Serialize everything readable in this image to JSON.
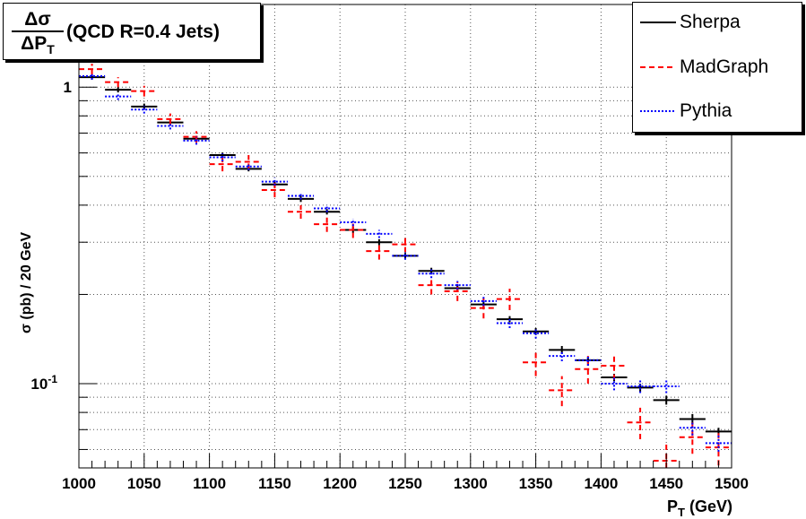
{
  "chart_data": {
    "type": "line",
    "title_fraction": {
      "numerator": "Δσ",
      "denominator": "ΔP",
      "denominator_sub": "T"
    },
    "title": "(QCD R=0.4 Jets)",
    "xlabel": "P",
    "xlabel_sub": "T",
    "xlabel_unit": "(GeV)",
    "ylabel": "σ (pb) / 20 GeV",
    "xlim": [
      1000,
      1500
    ],
    "ylim": [
      0.052,
      1.9
    ],
    "ylog": true,
    "grid": true,
    "legend_position": "top-right",
    "bin_width": 20,
    "x_ticks": [
      "1000",
      "1050",
      "1100",
      "1150",
      "1200",
      "1250",
      "1300",
      "1350",
      "1400",
      "1450",
      "1500"
    ],
    "y_ticks": [
      {
        "value": 1,
        "label": "1",
        "exp": ""
      },
      {
        "value": 0.1,
        "label": "10",
        "exp": "-1"
      }
    ],
    "x": [
      1010,
      1030,
      1050,
      1070,
      1090,
      1110,
      1130,
      1150,
      1170,
      1190,
      1210,
      1230,
      1250,
      1270,
      1290,
      1310,
      1330,
      1350,
      1370,
      1390,
      1410,
      1430,
      1450,
      1470,
      1490
    ],
    "series": [
      {
        "name": "Sherpa",
        "color": "#000000",
        "style": "solid",
        "values": [
          1.08,
          0.98,
          0.86,
          0.76,
          0.67,
          0.59,
          0.53,
          0.47,
          0.42,
          0.38,
          0.33,
          0.3,
          0.27,
          0.24,
          0.21,
          0.185,
          0.165,
          0.15,
          0.13,
          0.12,
          0.105,
          0.097,
          0.088,
          0.076,
          0.069
        ],
        "errors": [
          0.02,
          0.02,
          0.02,
          0.015,
          0.015,
          0.012,
          0.01,
          0.01,
          0.01,
          0.008,
          0.008,
          0.007,
          0.006,
          0.006,
          0.005,
          0.005,
          0.004,
          0.004,
          0.004,
          0.003,
          0.003,
          0.003,
          0.003,
          0.003,
          0.002
        ]
      },
      {
        "name": "MadGraph",
        "color": "#ff0000",
        "style": "dashed",
        "values": [
          1.15,
          1.04,
          0.97,
          0.78,
          0.68,
          0.55,
          0.56,
          0.45,
          0.38,
          0.345,
          0.33,
          0.28,
          0.295,
          0.215,
          0.205,
          0.18,
          0.193,
          0.118,
          0.095,
          0.112,
          0.115,
          0.074,
          0.055,
          0.066,
          0.061
        ],
        "errors": [
          0.05,
          0.04,
          0.04,
          0.035,
          0.03,
          0.03,
          0.03,
          0.025,
          0.02,
          0.02,
          0.02,
          0.018,
          0.018,
          0.015,
          0.015,
          0.014,
          0.016,
          0.012,
          0.011,
          0.012,
          0.012,
          0.009,
          0.008,
          0.008,
          0.008
        ]
      },
      {
        "name": "Pythia",
        "color": "#0000ff",
        "style": "dotted",
        "values": [
          1.09,
          0.93,
          0.84,
          0.74,
          0.66,
          0.58,
          0.54,
          0.48,
          0.43,
          0.39,
          0.35,
          0.32,
          0.27,
          0.235,
          0.215,
          0.19,
          0.16,
          0.148,
          0.124,
          0.12,
          0.1,
          0.098,
          0.098,
          0.071,
          0.063
        ],
        "errors": [
          0.03,
          0.025,
          0.025,
          0.02,
          0.02,
          0.018,
          0.015,
          0.014,
          0.012,
          0.011,
          0.01,
          0.01,
          0.008,
          0.008,
          0.007,
          0.007,
          0.006,
          0.006,
          0.005,
          0.005,
          0.005,
          0.005,
          0.005,
          0.004,
          0.004
        ]
      }
    ]
  }
}
